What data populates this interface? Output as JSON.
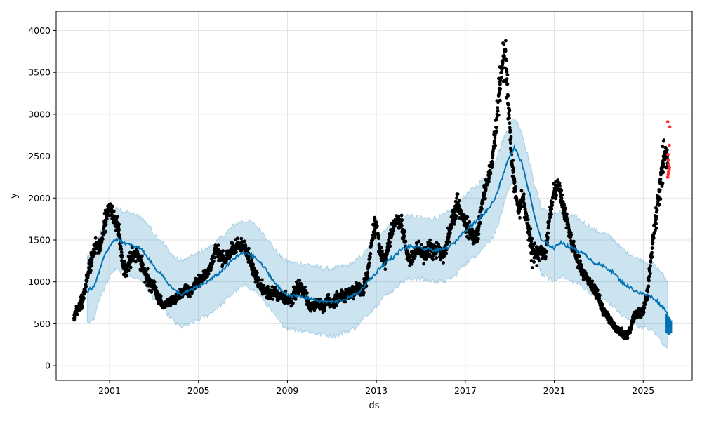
{
  "chart_data": {
    "type": "line",
    "title": "",
    "xlabel": "ds",
    "ylabel": "y",
    "xlim": [
      1998.6,
      2027.2
    ],
    "ylim": [
      -175,
      4230
    ],
    "grid": true,
    "legend": "none",
    "x_ticks": [
      {
        "value": 2001,
        "label": "2001"
      },
      {
        "value": 2005,
        "label": "2005"
      },
      {
        "value": 2009,
        "label": "2009"
      },
      {
        "value": 2013,
        "label": "2013"
      },
      {
        "value": 2017,
        "label": "2017"
      },
      {
        "value": 2021,
        "label": "2021"
      },
      {
        "value": 2025,
        "label": "2025"
      }
    ],
    "y_ticks": [
      {
        "value": 0,
        "label": "0"
      },
      {
        "value": 500,
        "label": "500"
      },
      {
        "value": 1000,
        "label": "1000"
      },
      {
        "value": 1500,
        "label": "1500"
      },
      {
        "value": 2000,
        "label": "2000"
      },
      {
        "value": 2500,
        "label": "2500"
      },
      {
        "value": 3000,
        "label": "3000"
      },
      {
        "value": 3500,
        "label": "3500"
      },
      {
        "value": 4000,
        "label": "4000"
      }
    ],
    "colors": {
      "forecast": "#0072B2",
      "band": "#0072B2",
      "observed": "#000000",
      "outliers": "#ff3333",
      "grid": "#dddddd"
    },
    "forecast": {
      "x": [
        2000.0,
        2000.3,
        2000.6,
        2000.9,
        2001.2,
        2001.5,
        2001.8,
        2002.1,
        2002.4,
        2002.7,
        2003.0,
        2003.3,
        2003.6,
        2003.9,
        2004.2,
        2004.5,
        2004.8,
        2005.1,
        2005.4,
        2005.7,
        2006.0,
        2006.3,
        2006.6,
        2006.9,
        2007.2,
        2007.5,
        2007.8,
        2008.1,
        2008.4,
        2008.7,
        2009.0,
        2009.3,
        2009.6,
        2009.9,
        2010.2,
        2010.5,
        2010.8,
        2011.1,
        2011.4,
        2011.7,
        2012.0,
        2012.3,
        2012.6,
        2012.9,
        2013.2,
        2013.5,
        2013.8,
        2014.1,
        2014.4,
        2014.7,
        2015.0,
        2015.3,
        2015.6,
        2015.9,
        2016.2,
        2016.5,
        2016.8,
        2017.1,
        2017.4,
        2017.7,
        2018.0,
        2018.3,
        2018.6,
        2018.9,
        2019.2,
        2019.5,
        2019.8,
        2020.1,
        2020.4,
        2020.7,
        2021.0,
        2021.3,
        2021.6,
        2021.9,
        2022.2,
        2022.5,
        2022.8,
        2023.1,
        2023.4,
        2023.7,
        2024.0,
        2024.3,
        2024.6,
        2024.9,
        2025.2,
        2025.5,
        2025.8,
        2026.1
      ],
      "yhat": [
        890,
        940,
        1180,
        1380,
        1510,
        1490,
        1450,
        1420,
        1400,
        1300,
        1180,
        1100,
        1000,
        900,
        850,
        880,
        920,
        960,
        1000,
        1060,
        1120,
        1200,
        1280,
        1330,
        1350,
        1300,
        1220,
        1120,
        1000,
        900,
        850,
        830,
        820,
        810,
        790,
        770,
        760,
        760,
        780,
        800,
        840,
        900,
        1000,
        1080,
        1180,
        1250,
        1300,
        1380,
        1420,
        1420,
        1400,
        1390,
        1380,
        1380,
        1410,
        1460,
        1560,
        1640,
        1700,
        1780,
        1860,
        1980,
        2200,
        2450,
        2600,
        2450,
        2150,
        1800,
        1500,
        1450,
        1400,
        1480,
        1420,
        1400,
        1350,
        1300,
        1230,
        1200,
        1160,
        1100,
        1000,
        950,
        900,
        860,
        840,
        800,
        720,
        630
      ],
      "upper": [
        1300,
        1350,
        1600,
        1780,
        1870,
        1860,
        1830,
        1800,
        1780,
        1700,
        1580,
        1500,
        1400,
        1300,
        1250,
        1280,
        1320,
        1360,
        1400,
        1460,
        1520,
        1600,
        1680,
        1720,
        1730,
        1690,
        1620,
        1520,
        1400,
        1300,
        1250,
        1230,
        1220,
        1210,
        1190,
        1170,
        1160,
        1160,
        1180,
        1200,
        1240,
        1300,
        1400,
        1490,
        1580,
        1650,
        1700,
        1760,
        1790,
        1780,
        1760,
        1760,
        1760,
        1780,
        1820,
        1880,
        1980,
        2060,
        2120,
        2200,
        2300,
        2420,
        2620,
        2840,
        2960,
        2820,
        2520,
        2180,
        1900,
        1850,
        1800,
        1860,
        1800,
        1780,
        1730,
        1680,
        1620,
        1590,
        1560,
        1500,
        1400,
        1350,
        1300,
        1260,
        1240,
        1200,
        1120,
        1000
      ],
      "lower": [
        520,
        560,
        820,
        1000,
        1150,
        1120,
        1080,
        1050,
        1030,
        920,
        800,
        720,
        620,
        520,
        460,
        480,
        520,
        560,
        600,
        660,
        720,
        800,
        880,
        930,
        950,
        900,
        820,
        720,
        600,
        500,
        450,
        430,
        420,
        410,
        390,
        370,
        360,
        350,
        380,
        410,
        450,
        510,
        610,
        690,
        780,
        860,
        910,
        990,
        1030,
        1040,
        1030,
        1020,
        1010,
        1000,
        1020,
        1060,
        1160,
        1240,
        1300,
        1380,
        1460,
        1560,
        1790,
        2060,
        2220,
        2080,
        1760,
        1420,
        1100,
        1050,
        1000,
        1080,
        1020,
        1000,
        950,
        900,
        840,
        800,
        760,
        700,
        600,
        550,
        500,
        460,
        440,
        400,
        300,
        200
      ]
    },
    "observed": {
      "x": [
        1999.4,
        1999.6,
        1999.8,
        2000.0,
        2000.2,
        2000.4,
        2000.6,
        2000.8,
        2001.0,
        2001.2,
        2001.4,
        2001.6,
        2001.8,
        2002.0,
        2002.2,
        2002.4,
        2002.6,
        2002.8,
        2003.0,
        2003.2,
        2003.4,
        2003.6,
        2003.8,
        2004.0,
        2004.2,
        2004.4,
        2004.6,
        2004.8,
        2005.0,
        2005.2,
        2005.4,
        2005.6,
        2005.8,
        2006.0,
        2006.2,
        2006.4,
        2006.6,
        2006.8,
        2007.0,
        2007.2,
        2007.4,
        2007.6,
        2007.8,
        2008.0,
        2008.2,
        2008.4,
        2008.6,
        2008.8,
        2009.0,
        2009.2,
        2009.4,
        2009.6,
        2009.8,
        2010.0,
        2010.2,
        2010.4,
        2010.6,
        2010.8,
        2011.0,
        2011.2,
        2011.4,
        2011.6,
        2011.8,
        2012.0,
        2012.2,
        2012.4,
        2012.6,
        2012.8,
        2013.0,
        2013.2,
        2013.4,
        2013.6,
        2013.8,
        2014.0,
        2014.2,
        2014.4,
        2014.6,
        2014.8,
        2015.0,
        2015.2,
        2015.4,
        2015.6,
        2015.8,
        2016.0,
        2016.2,
        2016.4,
        2016.6,
        2016.8,
        2017.0,
        2017.2,
        2017.4,
        2017.6,
        2017.8,
        2018.0,
        2018.2,
        2018.4,
        2018.6,
        2018.8,
        2019.0,
        2019.1,
        2019.2,
        2019.4,
        2019.6,
        2019.8,
        2020.0,
        2020.2,
        2020.4,
        2020.6,
        2020.8,
        2021.0,
        2021.2,
        2021.4,
        2021.6,
        2021.8,
        2022.0,
        2022.2,
        2022.4,
        2022.6,
        2022.8,
        2023.0,
        2023.2,
        2023.4,
        2023.6,
        2023.8,
        2024.0,
        2024.2,
        2024.4,
        2024.6,
        2024.8,
        2025.0,
        2025.2,
        2025.4,
        2025.6,
        2025.8,
        2026.0,
        2026.1
      ],
      "y": [
        600,
        680,
        800,
        1050,
        1300,
        1430,
        1400,
        1700,
        1900,
        1750,
        1650,
        1200,
        1150,
        1300,
        1350,
        1250,
        1100,
        1000,
        950,
        800,
        720,
        750,
        780,
        800,
        850,
        900,
        870,
        950,
        1000,
        1050,
        1100,
        1200,
        1400,
        1300,
        1250,
        1350,
        1400,
        1450,
        1420,
        1350,
        1200,
        1050,
        950,
        900,
        850,
        880,
        830,
        820,
        780,
        800,
        900,
        950,
        850,
        700,
        720,
        750,
        700,
        780,
        740,
        800,
        820,
        830,
        850,
        880,
        950,
        900,
        1100,
        1500,
        1700,
        1300,
        1250,
        1500,
        1700,
        1750,
        1600,
        1300,
        1250,
        1400,
        1350,
        1300,
        1450,
        1350,
        1400,
        1300,
        1500,
        1700,
        1900,
        1850,
        1700,
        1600,
        1500,
        1650,
        2000,
        2200,
        2400,
        2900,
        3500,
        3800,
        2800,
        2400,
        2200,
        1850,
        2000,
        1700,
        1400,
        1300,
        1400,
        1300,
        1800,
        2100,
        2200,
        1850,
        1700,
        1450,
        1300,
        1150,
        1050,
        980,
        900,
        800,
        650,
        600,
        500,
        430,
        400,
        350,
        420,
        600,
        620,
        650,
        900,
        1400,
        1800,
        2300,
        2600,
        2400
      ],
      "lo": [
        540,
        600,
        700,
        960,
        1180,
        1330,
        1320,
        1550,
        1800,
        1650,
        1500,
        1050,
        1030,
        1180,
        1240,
        1100,
        980,
        880,
        860,
        720,
        680,
        700,
        720,
        740,
        780,
        830,
        810,
        880,
        920,
        980,
        1020,
        1120,
        1300,
        1200,
        1150,
        1260,
        1320,
        1360,
        1330,
        1260,
        1100,
        950,
        860,
        820,
        780,
        800,
        760,
        740,
        700,
        700,
        780,
        830,
        750,
        640,
        650,
        680,
        630,
        700,
        670,
        720,
        740,
        750,
        770,
        800,
        860,
        820,
        980,
        1350,
        1550,
        1180,
        1140,
        1400,
        1580,
        1620,
        1470,
        1200,
        1150,
        1280,
        1240,
        1190,
        1320,
        1240,
        1280,
        1180,
        1380,
        1560,
        1740,
        1720,
        1580,
        1480,
        1400,
        1520,
        1880,
        2050,
        2250,
        2700,
        3250,
        3420,
        2600,
        2250,
        2050,
        1700,
        1820,
        1550,
        1160,
        1180,
        1260,
        1180,
        1650,
        1950,
        2050,
        1730,
        1590,
        1360,
        1210,
        1070,
        980,
        900,
        820,
        720,
        590,
        540,
        440,
        380,
        350,
        300,
        360,
        560,
        560,
        590,
        780,
        1200,
        1650,
        2000,
        2450,
        2250
      ],
      "hi": [
        660,
        760,
        900,
        1140,
        1420,
        1540,
        1500,
        1860,
        2010,
        1860,
        1790,
        1350,
        1280,
        1420,
        1460,
        1380,
        1220,
        1120,
        1050,
        890,
        780,
        800,
        840,
        860,
        920,
        970,
        940,
        1020,
        1080,
        1130,
        1180,
        1300,
        1480,
        1400,
        1360,
        1450,
        1490,
        1540,
        1510,
        1450,
        1310,
        1160,
        1050,
        990,
        930,
        960,
        900,
        900,
        880,
        920,
        1020,
        1050,
        950,
        770,
        800,
        830,
        780,
        860,
        820,
        880,
        900,
        910,
        940,
        960,
        1040,
        990,
        1220,
        1650,
        1870,
        1420,
        1360,
        1620,
        1840,
        1900,
        1740,
        1420,
        1360,
        1520,
        1460,
        1420,
        1560,
        1460,
        1510,
        1400,
        1620,
        1840,
        2080,
        1990,
        1830,
        1720,
        1620,
        1780,
        2120,
        2380,
        2600,
        3100,
        3750,
        4040,
        3000,
        2550,
        2350,
        2000,
        2180,
        1860,
        1560,
        1450,
        1550,
        1430,
        1950,
        2250,
        2350,
        1980,
        1820,
        1550,
        1400,
        1260,
        1140,
        1070,
        980,
        880,
        720,
        670,
        560,
        480,
        460,
        410,
        480,
        650,
        690,
        720,
        1020,
        1600,
        1950,
        2600,
        2750,
        2550
      ]
    },
    "outliers": {
      "x": [
        2026.1,
        2026.12,
        2026.14,
        2026.16,
        2026.18,
        2026.15,
        2026.13,
        2026.11,
        2026.17,
        2026.19,
        2026.1,
        2026.14
      ],
      "y": [
        2250,
        2280,
        2300,
        2330,
        2360,
        2400,
        2450,
        2520,
        2630,
        2850,
        2910,
        2320
      ]
    },
    "forecast_end": {
      "x": [
        2026.05,
        2026.1,
        2026.15,
        2026.2,
        2026.25
      ],
      "lo": [
        390,
        380,
        370,
        380,
        390
      ],
      "hi": [
        620,
        600,
        580,
        560,
        540
      ]
    }
  }
}
